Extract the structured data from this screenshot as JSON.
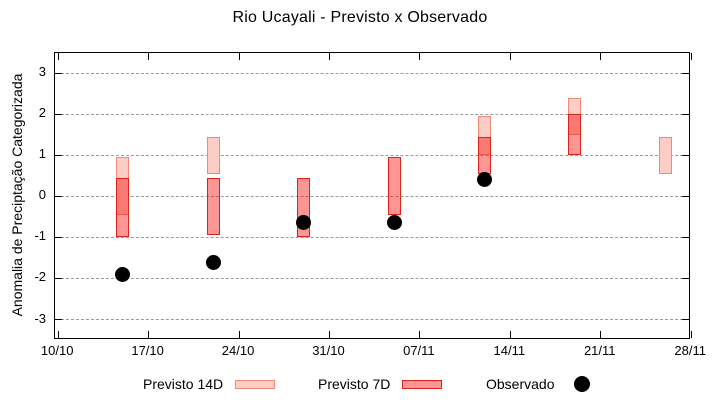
{
  "title": "Rio Ucayali - Previsto x Observado",
  "y_axis": {
    "label": "Anomalia de Preciptação Categorizada",
    "ticks": [
      3,
      2,
      1,
      0,
      -1,
      -2,
      -3
    ],
    "min": -3.5,
    "max": 3.5
  },
  "x_axis": {
    "tick_labels": [
      "10/10",
      "17/10",
      "24/10",
      "31/10",
      "07/11",
      "14/11",
      "21/11",
      "28/11"
    ],
    "tick_days": [
      0,
      7,
      14,
      21,
      28,
      35,
      42,
      49
    ]
  },
  "legend": {
    "items": [
      {
        "label": "Previsto 14D",
        "swatch": "light-pink-box"
      },
      {
        "label": "Previsto 7D",
        "swatch": "red-box"
      },
      {
        "label": "Observado",
        "swatch": "black-dot"
      }
    ]
  },
  "colors": {
    "previsto_14d_fill": "#fbcdc5",
    "previsto_14d_border": "#f0897b",
    "previsto_7d_fill": "rgba(244,22,16,0.45)",
    "previsto_7d_border": "#e0201a",
    "observado": "#000000",
    "gridline": "#9a9a9a"
  },
  "chart_data": {
    "type": "candlestick",
    "title": "Rio Ucayali - Previsto x Observado",
    "ylabel": "Anomalia de Preciptação Categorizada",
    "ylim": [
      -3.5,
      3.5
    ],
    "grid": "horizontal-dashed",
    "legend_position": "below-plot",
    "series_names": [
      "Previsto 14D",
      "Previsto 7D",
      "Observado"
    ],
    "bars": [
      {
        "date": "15/10",
        "day": 5,
        "previsto_14d": [
          -0.45,
          0.95
        ],
        "previsto_7d": [
          -1.0,
          0.45
        ],
        "observado": -1.9
      },
      {
        "date": "22/10",
        "day": 12,
        "previsto_14d": [
          0.55,
          1.45
        ],
        "previsto_7d": [
          -0.95,
          0.45
        ],
        "observado": -1.6
      },
      {
        "date": "29/10",
        "day": 19,
        "previsto_14d": null,
        "previsto_7d": [
          -1.0,
          0.45
        ],
        "observado": -0.65
      },
      {
        "date": "05/11",
        "day": 26,
        "previsto_14d": null,
        "previsto_7d": [
          -0.45,
          0.95
        ],
        "observado": -0.65
      },
      {
        "date": "12/11",
        "day": 33,
        "previsto_14d": [
          1.0,
          1.95
        ],
        "previsto_7d": [
          0.55,
          1.45
        ],
        "observado": 0.4
      },
      {
        "date": "19/11",
        "day": 40,
        "previsto_14d": [
          1.5,
          2.4
        ],
        "previsto_7d": [
          1.0,
          2.0
        ],
        "observado": null
      },
      {
        "date": "26/11",
        "day": 47,
        "previsto_14d": [
          0.55,
          1.45
        ],
        "previsto_7d": null,
        "observado": null
      }
    ]
  }
}
